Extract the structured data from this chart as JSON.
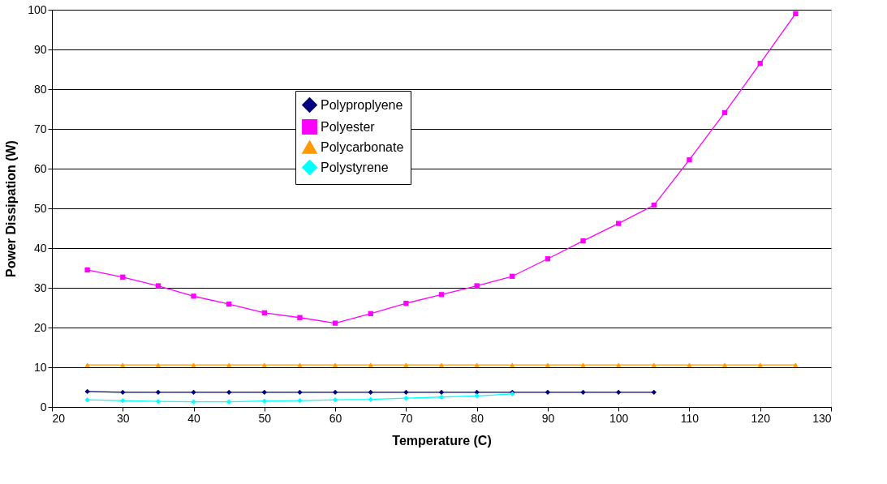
{
  "chart_data": {
    "type": "line",
    "xlabel": "Temperature (C)",
    "ylabel": "Power Dissipation (W)",
    "xlim": [
      20,
      130
    ],
    "xticks": [
      20,
      30,
      40,
      50,
      60,
      70,
      80,
      90,
      100,
      110,
      120,
      130
    ],
    "ylim": [
      0,
      100
    ],
    "yticks": [
      0,
      10,
      20,
      30,
      40,
      50,
      60,
      70,
      80,
      90,
      100
    ],
    "grid": "y",
    "legend": "top left",
    "line_style": "solid",
    "x": [
      25,
      30,
      35,
      40,
      45,
      50,
      55,
      60,
      65,
      70,
      75,
      80,
      85,
      90,
      95,
      100,
      105,
      110,
      115,
      120,
      125
    ],
    "series": [
      {
        "name": "Polyproplyene",
        "color": "#000080",
        "marker": "diamond",
        "values": [
          3.9,
          3.7,
          3.7,
          3.7,
          3.7,
          3.7,
          3.7,
          3.7,
          3.7,
          3.7,
          3.7,
          3.7,
          3.7,
          3.7,
          3.7,
          3.7,
          3.7,
          null,
          null,
          null,
          null
        ]
      },
      {
        "name": "Polyester",
        "color": "#ff00ff",
        "marker": "square",
        "values": [
          34.5,
          32.7,
          30.5,
          27.9,
          25.9,
          23.7,
          22.5,
          21.1,
          23.5,
          26.1,
          28.3,
          30.5,
          32.9,
          37.3,
          41.8,
          46.2,
          50.8,
          62.2,
          74.1,
          86.5,
          99.0
        ]
      },
      {
        "name": "Polycarbonate",
        "color": "#ff9900",
        "marker": "triangle",
        "values": [
          10.6,
          10.6,
          10.6,
          10.6,
          10.6,
          10.6,
          10.6,
          10.6,
          10.6,
          10.6,
          10.6,
          10.6,
          10.6,
          10.6,
          10.6,
          10.6,
          10.6,
          10.6,
          10.6,
          10.6,
          10.6
        ]
      },
      {
        "name": "Polystyrene",
        "color": "#00ffff",
        "marker": "diamond",
        "values": [
          1.8,
          1.6,
          1.4,
          1.3,
          1.3,
          1.5,
          1.6,
          1.8,
          1.9,
          2.2,
          2.5,
          2.8,
          3.3,
          null,
          null,
          null,
          null,
          null,
          null,
          null,
          null
        ]
      }
    ]
  }
}
